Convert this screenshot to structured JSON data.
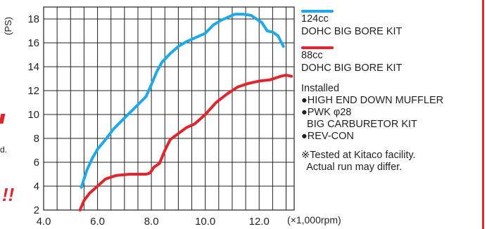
{
  "chart_data": {
    "type": "line",
    "title": "",
    "xlabel": "(×1,000rpm)",
    "ylabel": "(PS)",
    "xlim": [
      4.0,
      13.3
    ],
    "ylim": [
      2,
      19
    ],
    "x_ticks": [
      4.0,
      6.0,
      8.0,
      10.0,
      12.0
    ],
    "x_tick_labels": [
      "4.0",
      "6.0",
      "8.0",
      "10.0",
      "12.0"
    ],
    "y_ticks": [
      2,
      4,
      6,
      8,
      10,
      12,
      14,
      16,
      18
    ],
    "grid": true,
    "series": [
      {
        "name": "124cc DOHC BIG BORE KIT",
        "color": "#1eaae6",
        "points": [
          [
            5.4,
            3.9
          ],
          [
            5.6,
            5.3
          ],
          [
            5.8,
            6.3
          ],
          [
            6.0,
            7.1
          ],
          [
            6.3,
            7.9
          ],
          [
            6.6,
            8.8
          ],
          [
            7.0,
            9.7
          ],
          [
            7.4,
            10.6
          ],
          [
            7.8,
            11.5
          ],
          [
            8.0,
            12.5
          ],
          [
            8.2,
            13.6
          ],
          [
            8.4,
            14.4
          ],
          [
            8.7,
            15.1
          ],
          [
            9.0,
            15.7
          ],
          [
            9.3,
            16.1
          ],
          [
            9.6,
            16.4
          ],
          [
            10.0,
            16.8
          ],
          [
            10.3,
            17.5
          ],
          [
            10.6,
            17.9
          ],
          [
            10.9,
            18.2
          ],
          [
            11.1,
            18.4
          ],
          [
            11.4,
            18.4
          ],
          [
            11.7,
            18.3
          ],
          [
            11.9,
            18.0
          ],
          [
            12.1,
            17.7
          ],
          [
            12.3,
            17.0
          ],
          [
            12.5,
            16.9
          ],
          [
            12.7,
            16.6
          ],
          [
            12.9,
            15.7
          ]
        ]
      },
      {
        "name": "88cc DOHC BIG BORE KIT",
        "color": "#e2242c",
        "points": [
          [
            5.35,
            2.0
          ],
          [
            5.5,
            2.8
          ],
          [
            5.7,
            3.4
          ],
          [
            6.0,
            4.0
          ],
          [
            6.3,
            4.6
          ],
          [
            6.7,
            4.9
          ],
          [
            7.2,
            5.0
          ],
          [
            7.8,
            5.0
          ],
          [
            7.95,
            5.1
          ],
          [
            8.1,
            5.6
          ],
          [
            8.3,
            5.9
          ],
          [
            8.5,
            7.0
          ],
          [
            8.7,
            7.9
          ],
          [
            9.0,
            8.4
          ],
          [
            9.3,
            8.9
          ],
          [
            9.6,
            9.2
          ],
          [
            10.0,
            10.0
          ],
          [
            10.4,
            11.0
          ],
          [
            10.8,
            11.7
          ],
          [
            11.2,
            12.3
          ],
          [
            11.6,
            12.6
          ],
          [
            12.0,
            12.8
          ],
          [
            12.4,
            12.9
          ],
          [
            12.8,
            13.2
          ],
          [
            13.0,
            13.3
          ],
          [
            13.2,
            13.2
          ]
        ]
      }
    ],
    "legend_position": "right"
  },
  "legend": {
    "series1_line1": "124cc",
    "series1_line2": "DOHC BIG BORE KIT",
    "series2_line1": "88cc",
    "series2_line2": "DOHC BIG BORE KIT"
  },
  "notes": {
    "heading": "Installed",
    "item1": "●HIGH END DOWN MUFFLER",
    "item2": "●PWK φ28",
    "item3": "  BIG CARBURETOR KIT",
    "item4": "●REV-CON"
  },
  "footnote": {
    "line1": "※Tested at Kitaco facility.",
    "line2": "  Actual run may differ."
  },
  "left_crop": {
    "text_a": "d.",
    "text_b": "!!"
  }
}
